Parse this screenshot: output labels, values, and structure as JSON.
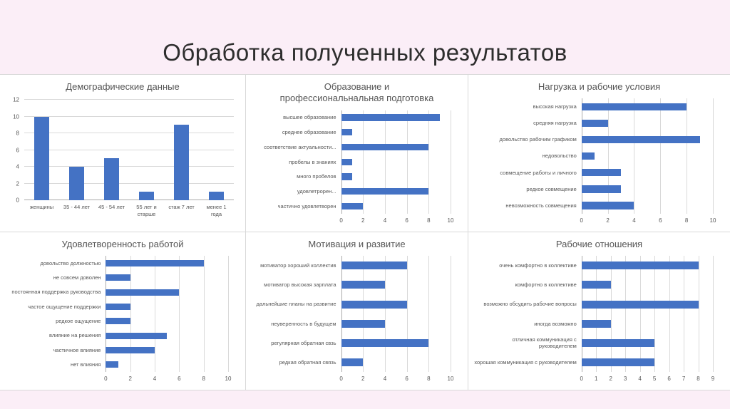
{
  "slide": {
    "title": "Обработка полученных результатов"
  },
  "colors": {
    "background": "#FBEEF7",
    "panel_bg": "#FFFFFF",
    "panel_border": "#D9D9D9",
    "gridline": "#D9D9D9",
    "bar": "#4472C4"
  },
  "chart_data": [
    {
      "type": "bar",
      "orientation": "vertical",
      "title": "Демографические данные",
      "categories": [
        "женщины",
        "35 - 44 лет",
        "45 - 54 лет",
        "55 лет и старше",
        "стаж 7 лет",
        "менее 1 года"
      ],
      "values": [
        10,
        4,
        5,
        1,
        9,
        1
      ],
      "xlabel": "",
      "ylabel": "",
      "ylim": [
        0,
        12
      ],
      "yticks": [
        0,
        2,
        4,
        6,
        8,
        10,
        12
      ],
      "grid": true,
      "legend": false
    },
    {
      "type": "bar",
      "orientation": "horizontal",
      "title": "Образование и профессиональнальная подготовка",
      "categories": [
        "высшее образование",
        "среднее образование",
        "соответствие актуальности...",
        "пробелы в знаниях",
        "много пробелов",
        "удовлетрорен...",
        "частично удовлетворен"
      ],
      "values": [
        9,
        1,
        8,
        1,
        1,
        8,
        2
      ],
      "xlabel": "",
      "ylabel": "",
      "xlim": [
        0,
        10
      ],
      "xticks": [
        0,
        2,
        4,
        6,
        8,
        10
      ],
      "grid": true,
      "legend": false
    },
    {
      "type": "bar",
      "orientation": "horizontal",
      "title": "Нагрузка и рабочие условия",
      "categories": [
        "высокая нагрузка",
        "средняя нагрузка",
        "довольство рабочим графиком",
        "недовольство",
        "совмещение работы и личного",
        "редкое совмещение",
        "невозможность совмещения"
      ],
      "values": [
        8,
        2,
        9,
        1,
        3,
        3,
        4
      ],
      "xlabel": "",
      "ylabel": "",
      "xlim": [
        0,
        10
      ],
      "xticks": [
        0,
        2,
        4,
        6,
        8,
        10
      ],
      "grid": true,
      "legend": false
    },
    {
      "type": "bar",
      "orientation": "horizontal",
      "title": "Удовлетворенность работой",
      "categories": [
        "довольство должностью",
        "не совсем доволен",
        "постоянная поддержка руководства",
        "частое ощущение поддержки",
        "редкое ощущение",
        "влияние на решения",
        "частичное влияние",
        "нет влияния"
      ],
      "values": [
        8,
        2,
        6,
        2,
        2,
        5,
        4,
        1
      ],
      "xlabel": "",
      "ylabel": "",
      "xlim": [
        0,
        10
      ],
      "xticks": [
        0,
        2,
        4,
        6,
        8,
        10
      ],
      "grid": true,
      "legend": false
    },
    {
      "type": "bar",
      "orientation": "horizontal",
      "title": "Мотивация и развитие",
      "categories": [
        "мотиватор хороший коллектив",
        "мотиватор высокая зарплата",
        "дальнейшие планы на развитие",
        "неуверенность в будущем",
        "регулярная обратная свзь",
        "редкая обратная связь"
      ],
      "values": [
        6,
        4,
        6,
        4,
        8,
        2
      ],
      "xlabel": "",
      "ylabel": "",
      "xlim": [
        0,
        10
      ],
      "xticks": [
        0,
        2,
        4,
        6,
        8,
        10
      ],
      "grid": true,
      "legend": false
    },
    {
      "type": "bar",
      "orientation": "horizontal",
      "title": "Рабочие отношения",
      "categories": [
        "очень комфортно в коллективе",
        "комфортно в коллективе",
        "возможно обсудить рабочие вопросы",
        "иногда возможно",
        "отличная коммуникация с руководителем",
        "хорошая коммуникация с руководителем"
      ],
      "values": [
        8,
        2,
        8,
        2,
        5,
        5
      ],
      "xlabel": "",
      "ylabel": "",
      "xlim": [
        0,
        9
      ],
      "xticks": [
        0,
        1,
        2,
        3,
        4,
        5,
        6,
        7,
        8,
        9
      ],
      "grid": true,
      "legend": false
    }
  ]
}
